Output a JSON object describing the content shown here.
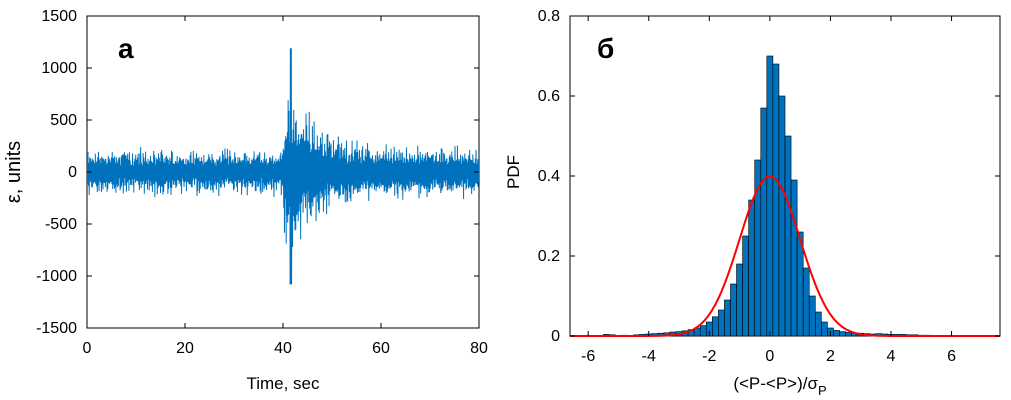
{
  "chart_data": [
    {
      "type": "line",
      "panel_label": "а",
      "xlabel": "Time, sec",
      "ylabel": "ε, units",
      "xlim": [
        0,
        80
      ],
      "ylim": [
        -1500,
        1500
      ],
      "xticks": [
        "0",
        "20",
        "40",
        "60",
        "80"
      ],
      "yticks": [
        "-1500",
        "-1000",
        "-500",
        "0",
        "500",
        "1000",
        "1500"
      ],
      "line_color": "#0072BD",
      "series_description_values": {
        "background_amplitude": 260,
        "event_start_sec": 40,
        "peak_max": 1190,
        "peak_min": -1080,
        "peak_time_sec": 41.5,
        "coda_end_sec": 62
      },
      "grid": false
    },
    {
      "type": "bar",
      "panel_label": "б",
      "xlabel": "(<P-<P>)/σ",
      "xlabel_sub": "P",
      "ylabel": "PDF",
      "xlim": [
        -6.6,
        7.6
      ],
      "ylim": [
        0,
        0.8
      ],
      "xticks": [
        "-6",
        "-4",
        "-2",
        "0",
        "2",
        "4",
        "6"
      ],
      "yticks": [
        "0",
        "0.2",
        "0.4",
        "0.6",
        "0.8"
      ],
      "bar_color": "#0072BD",
      "curve_color": "#FF0000",
      "bin_width": 0.2,
      "bins_center": [
        -5.4,
        -5.2,
        -4.8,
        -4.4,
        -4.2,
        -4.0,
        -3.8,
        -3.6,
        -3.4,
        -3.2,
        -3.0,
        -2.8,
        -2.6,
        -2.4,
        -2.2,
        -2.0,
        -1.8,
        -1.6,
        -1.4,
        -1.2,
        -1.0,
        -0.8,
        -0.6,
        -0.4,
        -0.2,
        0.0,
        0.2,
        0.4,
        0.6,
        0.8,
        1.0,
        1.2,
        1.4,
        1.6,
        1.8,
        2.0,
        2.2,
        2.4,
        2.6,
        2.8,
        3.0,
        3.2,
        3.4,
        3.6,
        3.8,
        4.0,
        4.2,
        4.4,
        4.6,
        4.8,
        5.0,
        5.2
      ],
      "bins_value": [
        0.004,
        0.003,
        0.002,
        0.003,
        0.004,
        0.005,
        0.006,
        0.007,
        0.008,
        0.01,
        0.011,
        0.013,
        0.016,
        0.02,
        0.026,
        0.035,
        0.048,
        0.065,
        0.09,
        0.13,
        0.18,
        0.25,
        0.34,
        0.44,
        0.57,
        0.7,
        0.68,
        0.6,
        0.5,
        0.39,
        0.26,
        0.17,
        0.1,
        0.06,
        0.035,
        0.02,
        0.014,
        0.011,
        0.009,
        0.008,
        0.007,
        0.006,
        0.005,
        0.006,
        0.005,
        0.004,
        0.004,
        0.004,
        0.003,
        0.003,
        0.002,
        0.002
      ],
      "curve": "standard normal pdf",
      "grid": false
    }
  ]
}
